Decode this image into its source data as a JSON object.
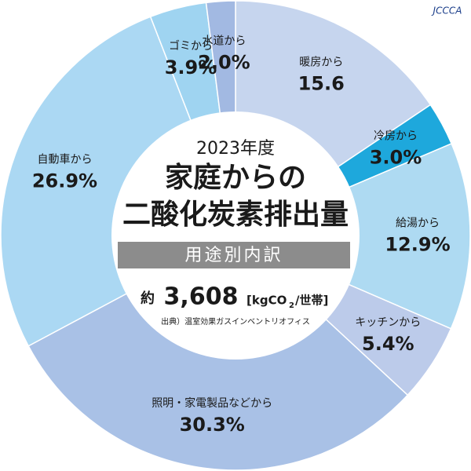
{
  "chart_data": {
    "type": "donut",
    "title": "2023年度",
    "title_lines": [
      "家庭からの",
      "二酸化炭素排出量"
    ],
    "subtitle": "用途別内訳",
    "total_prefix": "約",
    "total": "3,608",
    "unit_parts": [
      "[kgCO",
      "2",
      "/世帯]"
    ],
    "source": "出典）温室効果ガスインベントリオフィス",
    "logo": "JCCCA",
    "categories": [
      "暖房から",
      "冷房から",
      "給湯から",
      "キッチンから",
      "照明・家電製品などから",
      "自動車から",
      "ゴミから",
      "水道から"
    ],
    "values": [
      15.6,
      3.0,
      12.9,
      5.4,
      30.3,
      26.9,
      3.9,
      2.0
    ],
    "value_labels": [
      "15.6",
      "3.0%",
      "12.9%",
      "5.4%",
      "30.3%",
      "26.9%",
      "3.9%",
      "2.0%"
    ],
    "colors": [
      "#c6d5ee",
      "#1ea8dc",
      "#aedaf2",
      "#bccbea",
      "#a9c1e6",
      "#abd8f3",
      "#9fd4f1",
      "#a2b9e2"
    ]
  }
}
